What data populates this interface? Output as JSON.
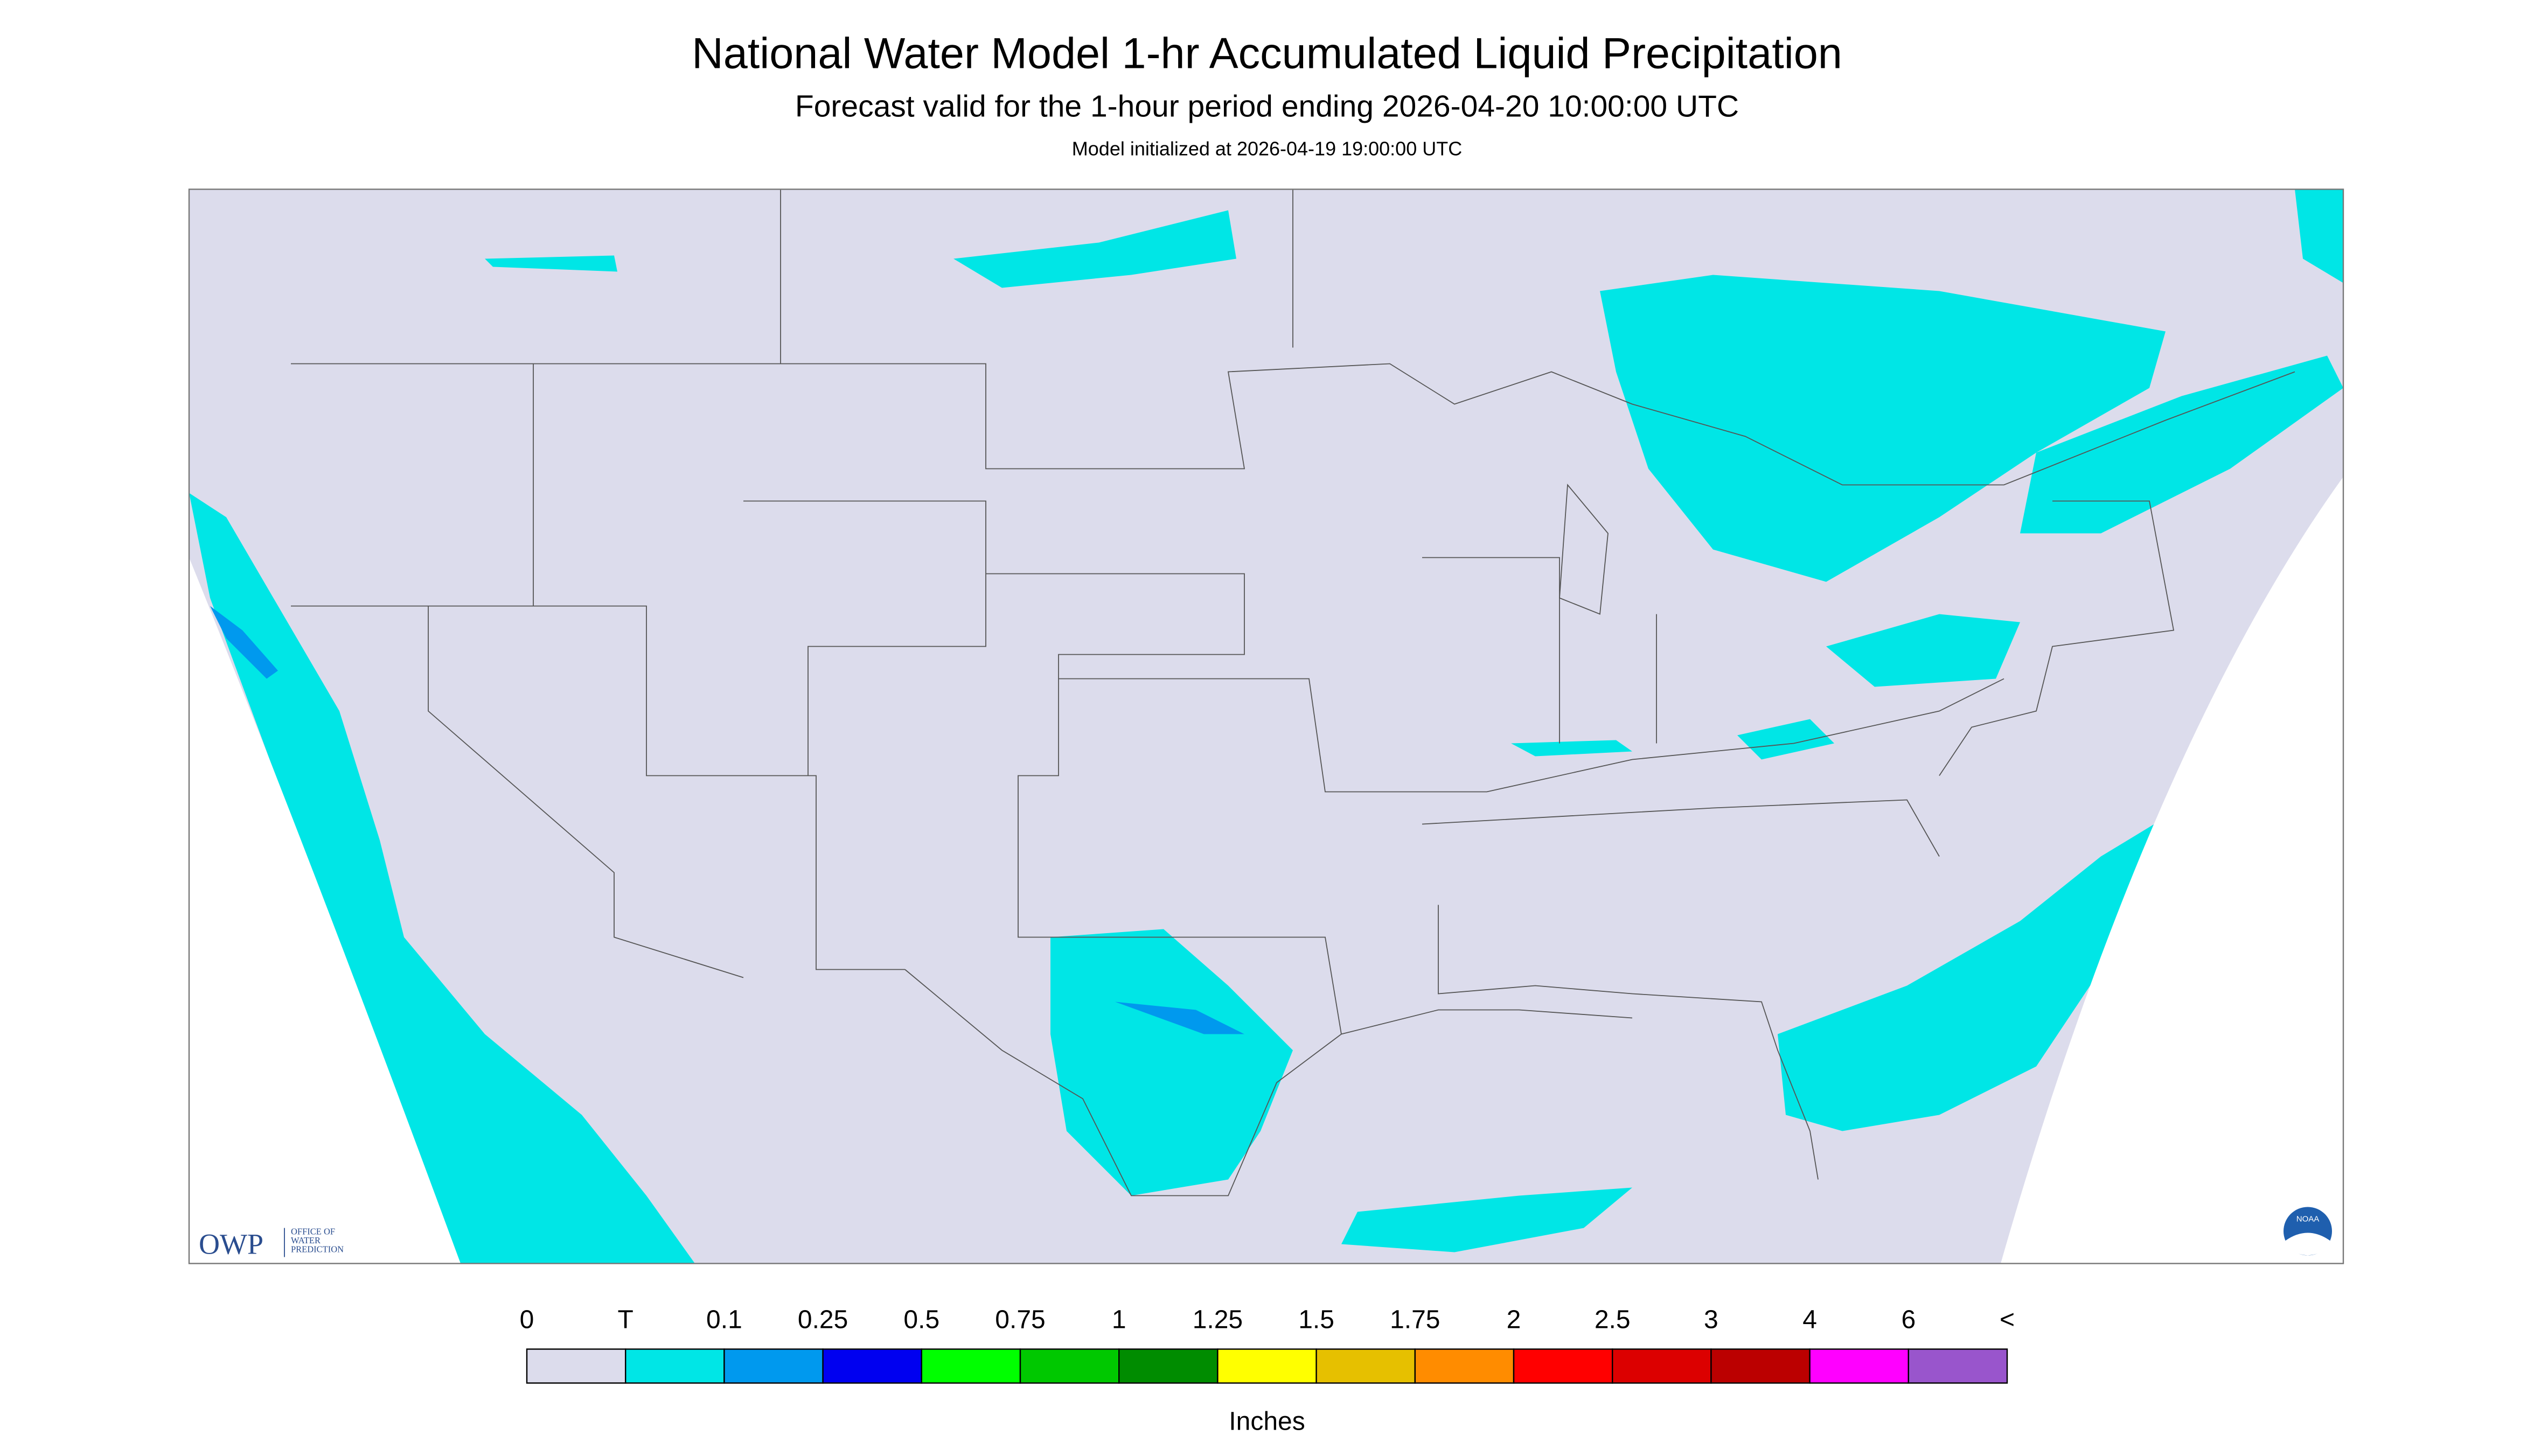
{
  "header": {
    "title": "National Water Model 1-hr Accumulated Liquid Precipitation",
    "subtitle": "Forecast valid for the 1-hour period ending 2026-04-20 10:00:00 UTC",
    "init": "Model initialized at 2026-04-19 19:00:00 UTC"
  },
  "legend": {
    "labels": [
      "0",
      "T",
      "0.1",
      "0.25",
      "0.5",
      "0.75",
      "1",
      "1.25",
      "1.5",
      "1.75",
      "2",
      "2.5",
      "3",
      "4",
      "6",
      "<"
    ],
    "colors": [
      "#dcdcec",
      "#00e6e6",
      "#0099ee",
      "#0000f0",
      "#00ff00",
      "#00c800",
      "#008c00",
      "#ffff00",
      "#e6c000",
      "#ff8c00",
      "#ff0000",
      "#dc0000",
      "#bb0000",
      "#ff00ff",
      "#9955cc"
    ],
    "unit": "Inches"
  },
  "logos": {
    "owp": "OWP",
    "owp_lines": [
      "OFFICE OF",
      "WATER",
      "PREDICTION"
    ],
    "noaa": "NOAA"
  }
}
